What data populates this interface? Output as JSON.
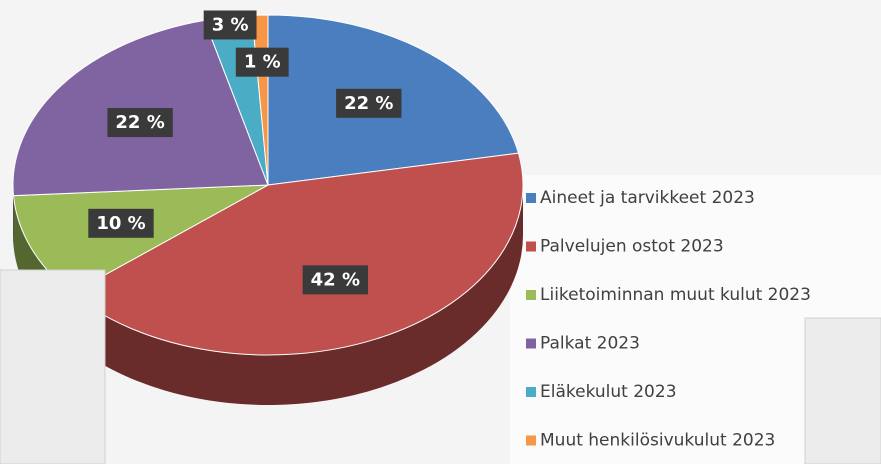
{
  "chart_data": {
    "type": "pie",
    "categories": [
      "Aineet ja tarvikkeet 2023",
      "Palvelujen ostot 2023",
      "Liiketoiminnan muut kulut 2023",
      "Palkat 2023",
      "Eläkekulut 2023",
      "Muut henkilösivukulut 2023"
    ],
    "values": [
      22,
      42,
      10,
      22,
      3,
      1
    ],
    "value_labels": [
      "22 %",
      "42 %",
      "10 %",
      "22 %",
      "3 %",
      "1 %"
    ],
    "colors": [
      "#4a7ebf",
      "#c0504d",
      "#9bbb59",
      "#8064a2",
      "#4bacc6",
      "#f79646"
    ],
    "legend": "right"
  }
}
